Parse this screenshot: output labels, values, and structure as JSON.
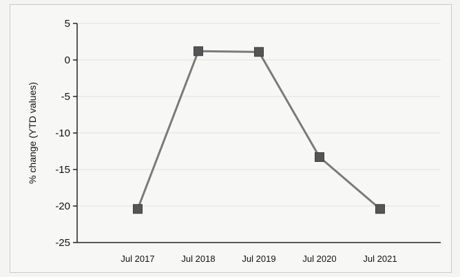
{
  "chart_data": {
    "type": "line",
    "title": "",
    "xlabel": "",
    "ylabel": "% change (YTD values)",
    "categories": [
      "Jul 2017",
      "Jul 2018",
      "Jul 2019",
      "Jul 2020",
      "Jul 2021"
    ],
    "series": [
      {
        "values": [
          -20.4,
          1.2,
          1.1,
          -13.3,
          -20.4
        ],
        "color": "#7a7a7a",
        "marker": "square",
        "marker_color": "#555555"
      }
    ],
    "ylim": [
      -25,
      5
    ],
    "yticks": [
      5,
      0,
      -5,
      -10,
      -15,
      -20,
      -25
    ],
    "ytick_labels": [
      "5",
      "0",
      "-5",
      "-10",
      "-15",
      "-20",
      "-25"
    ],
    "grid": true,
    "legend": "none"
  }
}
